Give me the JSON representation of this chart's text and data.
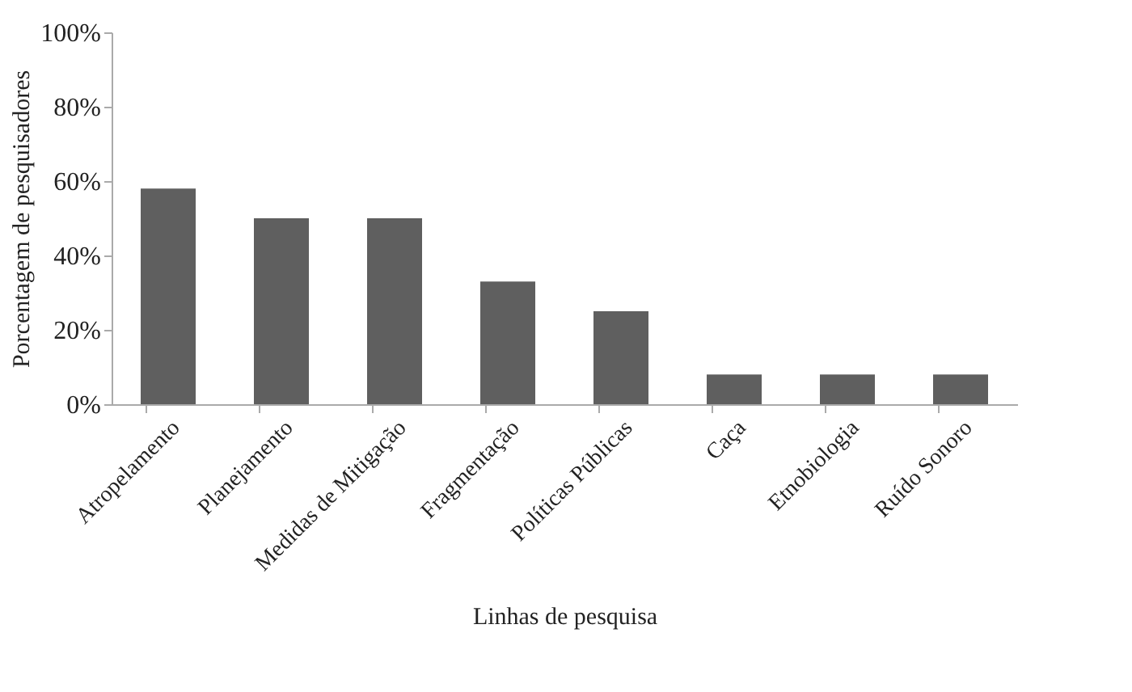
{
  "chart_data": {
    "type": "bar",
    "xlabel": "Linhas de pesquisa",
    "ylabel": "Porcentagem de pesquisadores",
    "categories": [
      "Atropelamento",
      "Planejamento",
      "Medidas de Mitigação",
      "Fragmentação",
      "Políticas Públicas",
      "Caça",
      "Etnobiologia",
      "Ruído Sonoro"
    ],
    "values": [
      58,
      50,
      50,
      33,
      25,
      8,
      8,
      8
    ],
    "color": "#5f5f5f",
    "ylim": [
      0,
      100
    ],
    "yticks": [
      {
        "value": 0,
        "label": "0%"
      },
      {
        "value": 20,
        "label": "20%"
      },
      {
        "value": 40,
        "label": "40%"
      },
      {
        "value": 60,
        "label": "60%"
      },
      {
        "value": 80,
        "label": "80%"
      },
      {
        "value": 100,
        "label": "100%"
      }
    ],
    "grid": false
  }
}
